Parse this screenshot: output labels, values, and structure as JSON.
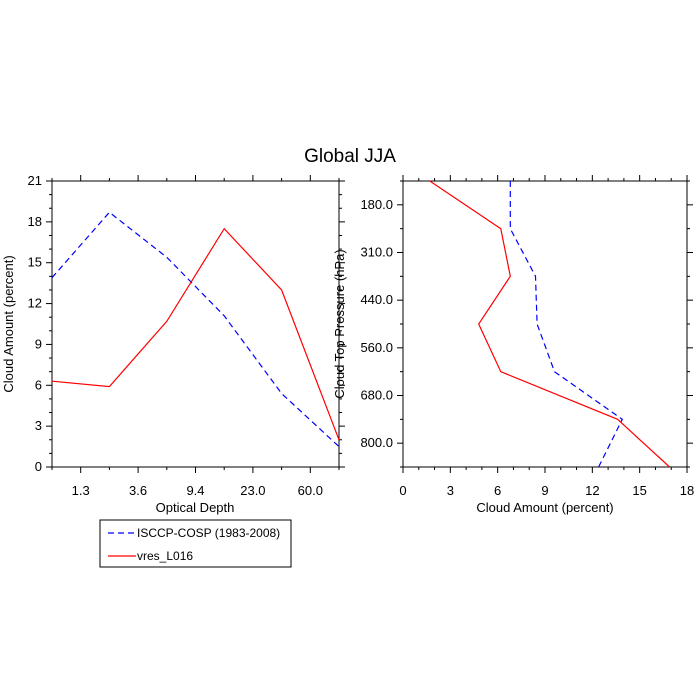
{
  "title": "Global JJA",
  "chart_data": [
    {
      "type": "line",
      "xlabel": "Optical Depth",
      "ylabel": "Cloud Amount (percent)",
      "ylim": [
        0,
        21
      ],
      "yticks": [
        "0",
        "3",
        "6",
        "9",
        "12",
        "15",
        "18",
        "21"
      ],
      "xtick_labels": [
        "1.3",
        "3.6",
        "9.4",
        "23.0",
        "60.0"
      ],
      "x": [
        0,
        1,
        2,
        3,
        4,
        5
      ],
      "series": [
        {
          "name": "ISCCP-COSP (1983-2008)",
          "color": "#0000ff",
          "dash": true,
          "values": [
            13.9,
            18.7,
            15.4,
            11.1,
            5.4,
            1.5
          ]
        },
        {
          "name": "vres_L016",
          "color": "#ff0000",
          "dash": false,
          "values": [
            6.3,
            5.9,
            10.7,
            17.5,
            13.0,
            2.0
          ]
        }
      ]
    },
    {
      "type": "line",
      "xlabel": "Cloud Amount (percent)",
      "ylabel": "Cloud Top Pressure (hPa)",
      "xlim": [
        0,
        18
      ],
      "xticks": [
        "0",
        "3",
        "6",
        "9",
        "12",
        "15",
        "18"
      ],
      "ytick_labels": [
        "180.0",
        "310.0",
        "440.0",
        "560.0",
        "680.0",
        "800.0"
      ],
      "y": [
        0,
        1,
        2,
        3,
        4,
        5,
        6
      ],
      "series": [
        {
          "name": "ISCCP-COSP (1983-2008)",
          "color": "#0000ff",
          "dash": true,
          "values": [
            6.8,
            6.8,
            8.4,
            8.5,
            9.6,
            13.9,
            12.4
          ]
        },
        {
          "name": "vres_L016",
          "color": "#ff0000",
          "dash": false,
          "values": [
            1.7,
            6.2,
            6.8,
            4.8,
            6.2,
            13.6,
            16.9
          ]
        }
      ]
    }
  ],
  "legend": {
    "placement": "bottom-left",
    "items": [
      "ISCCP-COSP (1983-2008)",
      "vres_L016"
    ]
  }
}
